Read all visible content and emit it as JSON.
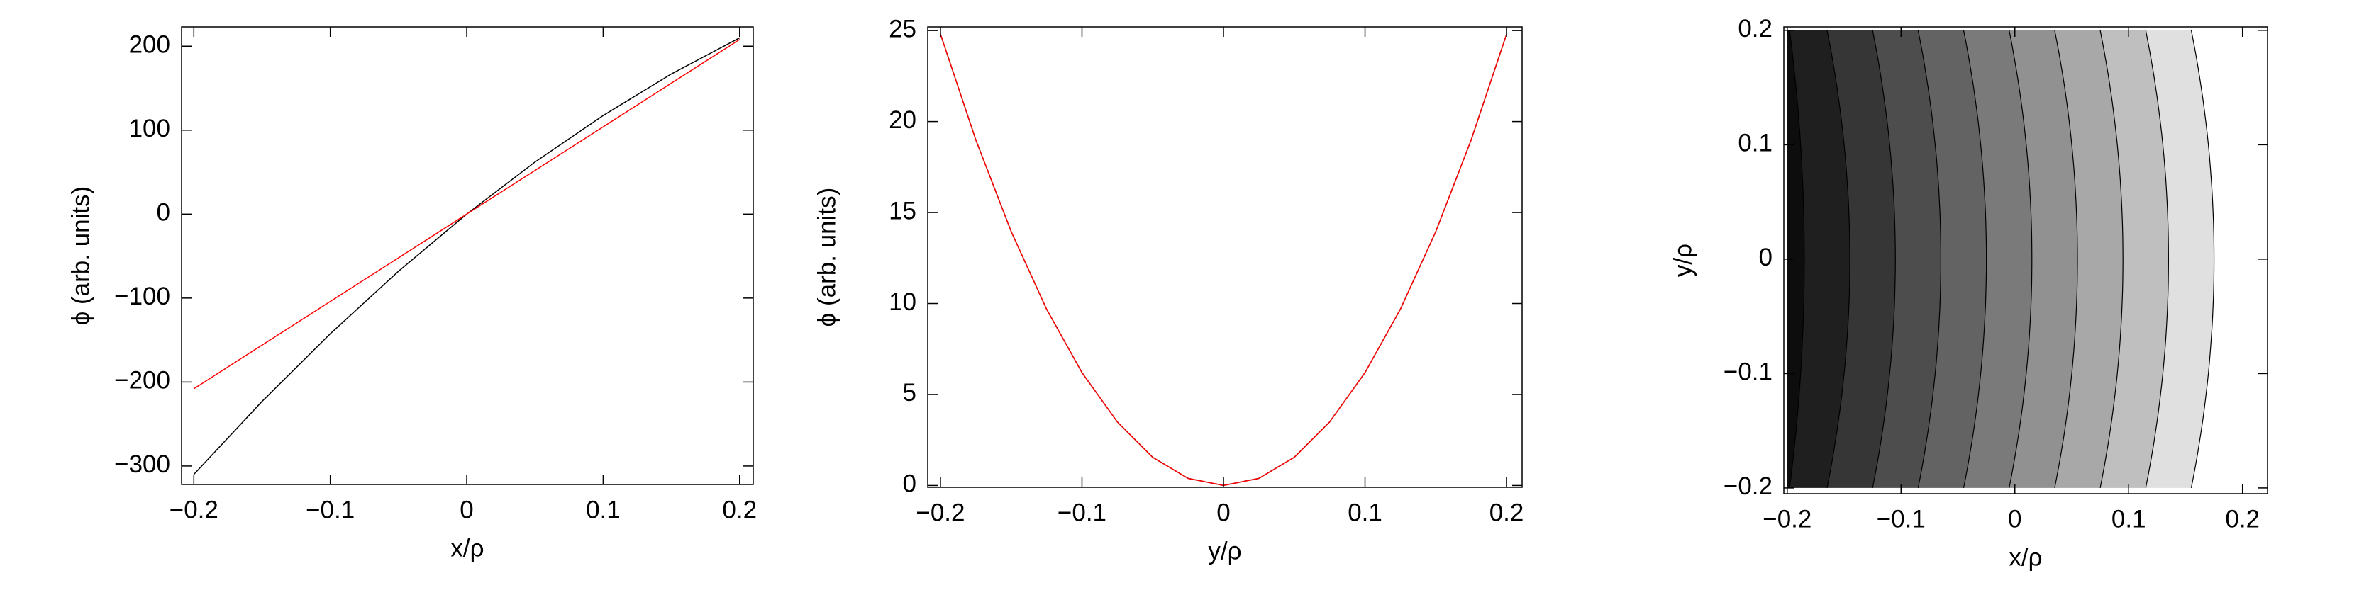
{
  "chart_data": [
    {
      "type": "line",
      "xlabel": "x/ρ",
      "ylabel": "ϕ (arb. units)",
      "x": [
        -0.2,
        -0.15,
        -0.1,
        -0.05,
        0,
        0.05,
        0.1,
        0.15,
        0.2
      ],
      "series": [
        {
          "color": "#000000",
          "values": [
            -310,
            -223,
            -142.5,
            -68,
            0,
            62,
            117.5,
            167,
            210
          ]
        },
        {
          "color": "#ff0000",
          "values": [
            -208,
            -156,
            -104,
            -52,
            0,
            52,
            104,
            156,
            208
          ]
        }
      ],
      "xlim": [
        -0.209,
        0.21
      ],
      "ylim": [
        -322,
        223
      ],
      "xticks": [
        {
          "value": -0.2,
          "label": "−0.2"
        },
        {
          "value": -0.1,
          "label": "−0.1"
        },
        0,
        0.1,
        0.2
      ],
      "yticks": [
        {
          "value": -300,
          "label": "−300"
        },
        {
          "value": -200,
          "label": "−200"
        },
        {
          "value": -100,
          "label": "−100"
        },
        0,
        100,
        200
      ]
    },
    {
      "type": "line",
      "xlabel": "y/ρ",
      "ylabel": "ϕ (arb. units)",
      "x": [
        -0.2,
        -0.175,
        -0.15,
        -0.125,
        -0.1,
        -0.075,
        -0.05,
        -0.025,
        0,
        0.025,
        0.05,
        0.075,
        0.1,
        0.125,
        0.15,
        0.175,
        0.2
      ],
      "series": [
        {
          "color": "#000000",
          "values": [
            24.8,
            18.99,
            13.95,
            9.69,
            6.2,
            3.49,
            1.55,
            0.39,
            0,
            0.39,
            1.55,
            3.49,
            6.2,
            9.69,
            13.95,
            18.99,
            24.8
          ]
        },
        {
          "color": "#ff0000",
          "values": [
            24.8,
            18.99,
            13.95,
            9.69,
            6.2,
            3.49,
            1.55,
            0.39,
            0,
            0.39,
            1.55,
            3.49,
            6.2,
            9.69,
            13.95,
            18.99,
            24.8
          ]
        }
      ],
      "xlim": [
        -0.209,
        0.211
      ],
      "ylim": [
        -0.1,
        25.2
      ],
      "xticks": [
        {
          "value": -0.2,
          "label": "−0.2"
        },
        {
          "value": -0.1,
          "label": "−0.1"
        },
        0,
        0.1,
        0.2
      ],
      "yticks": [
        0,
        5,
        10,
        15,
        20,
        25
      ]
    },
    {
      "type": "contour",
      "xlabel": "x/ρ",
      "ylabel": "y/ρ",
      "x_range": [
        -0.2,
        0.2
      ],
      "y_range": [
        -0.2,
        0.2
      ],
      "contours": [
        {
          "x_mid": -0.185,
          "x_edge": -0.198
        },
        {
          "x_mid": -0.145,
          "x_edge": -0.165
        },
        {
          "x_mid": -0.105,
          "x_edge": -0.125
        },
        {
          "x_mid": -0.065,
          "x_edge": -0.085
        },
        {
          "x_mid": -0.025,
          "x_edge": -0.045
        },
        {
          "x_mid": 0.015,
          "x_edge": -0.005
        },
        {
          "x_mid": 0.055,
          "x_edge": 0.035
        },
        {
          "x_mid": 0.095,
          "x_edge": 0.075
        },
        {
          "x_mid": 0.135,
          "x_edge": 0.115
        },
        {
          "x_mid": 0.175,
          "x_edge": 0.155
        }
      ],
      "band_colors": [
        "#0d0d0d",
        "#1f1f1f",
        "#363636",
        "#4d4d4d",
        "#636363",
        "#7a7a7a",
        "#919191",
        "#a8a8a8",
        "#bfbfbf",
        "#e0e0e0"
      ],
      "xlim": [
        -0.203,
        0.222
      ],
      "ylim": [
        -0.205,
        0.203
      ],
      "xticks": [
        {
          "value": -0.2,
          "label": "−0.2"
        },
        {
          "value": -0.1,
          "label": "−0.1"
        },
        0,
        0.1,
        0.2
      ],
      "yticks": [
        {
          "value": -0.2,
          "label": "−0.2"
        },
        {
          "value": -0.1,
          "label": "−0.1"
        },
        0,
        0.1,
        0.2
      ]
    }
  ]
}
